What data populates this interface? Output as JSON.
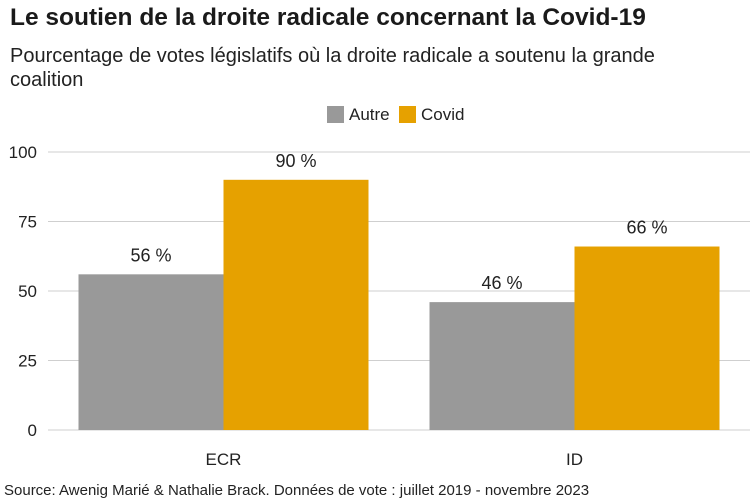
{
  "chart_data": {
    "type": "bar",
    "title": "Le soutien de la droite radicale concernant la Covid-19",
    "subtitle": "Pourcentage de votes législatifs où la droite radicale a soutenu la grande coalition",
    "categories": [
      "ECR",
      "ID"
    ],
    "series": [
      {
        "name": "Autre",
        "color": "#999999",
        "values": [
          56,
          46
        ],
        "labels": [
          "56 %",
          "46 %"
        ]
      },
      {
        "name": "Covid",
        "color": "#E6A100",
        "values": [
          90,
          66
        ],
        "labels": [
          "90 %",
          "66 %"
        ]
      }
    ],
    "yticks": [
      0,
      25,
      50,
      75,
      100
    ],
    "ylim": [
      0,
      100
    ],
    "xlabel": "",
    "ylabel": "",
    "grid": true,
    "legend": "top-center"
  },
  "source": "Source: Awenig Marié & Nathalie Brack. Données de vote : juillet 2019 - novembre 2023"
}
